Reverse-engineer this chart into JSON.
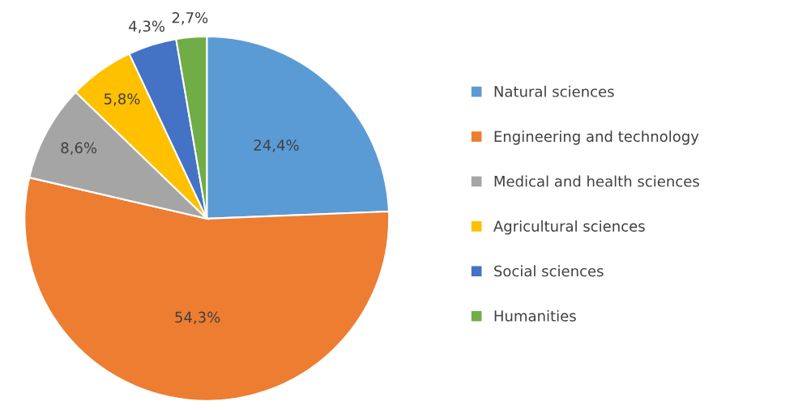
{
  "chart_data": {
    "type": "pie",
    "categories": [
      "Natural sciences",
      "Engineering and technology",
      "Medical and health sciences",
      "Agricultural sciences",
      "Social sciences",
      "Humanities"
    ],
    "values": [
      24.4,
      54.3,
      8.6,
      5.8,
      4.3,
      2.7
    ],
    "colors": [
      "#5b9bd5",
      "#ed7d31",
      "#a5a5a5",
      "#ffc000",
      "#4472c4",
      "#70ad47"
    ],
    "value_labels": [
      "24,4%",
      "54,3%",
      "8,6%",
      "5,8%",
      "4,3%",
      "2,7%"
    ],
    "legend": "right"
  }
}
